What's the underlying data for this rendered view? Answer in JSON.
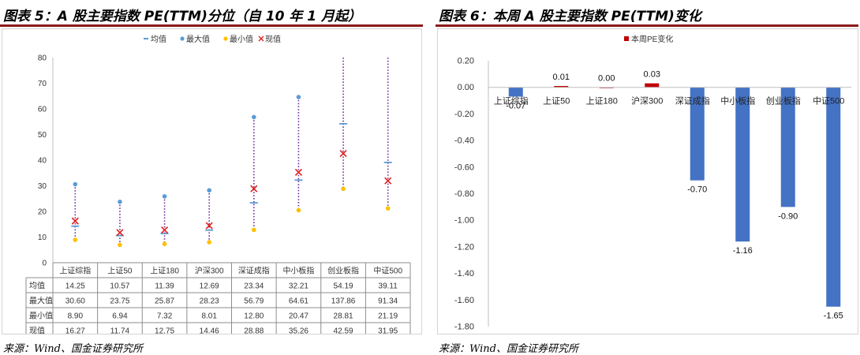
{
  "left": {
    "title": "图表 5：A 股主要指数 PE(TTM)分位（自 10 年 1 月起）",
    "source": "来源：Wind、国金证券研究所"
  },
  "right": {
    "title": "图表 6：本周 A 股主要指数 PE(TTM)变化",
    "source": "来源：Wind、国金证券研究所"
  },
  "colors": {
    "title_rule": "#8b1a1a",
    "mean": "#5b9bd5",
    "max": "#5b9bd5",
    "min": "#ffc000",
    "current": "#e02020",
    "range_line": "#7030a0",
    "bar_neg": "#4472c4",
    "bar_pos": "#c00000"
  },
  "chart_data": [
    {
      "type": "table",
      "legend": [
        "均值",
        "最大值",
        "最小值",
        "现值"
      ],
      "categories": [
        "上证综指",
        "上证50",
        "上证180",
        "沪深300",
        "深证成指",
        "中小板指",
        "创业板指",
        "中证500"
      ],
      "ylim": [
        0,
        80
      ],
      "yticks": [
        0,
        10,
        20,
        30,
        40,
        50,
        60,
        70,
        80
      ],
      "series": [
        {
          "name": "均值",
          "values": [
            14.25,
            10.57,
            11.39,
            12.69,
            23.34,
            32.21,
            54.19,
            39.11
          ]
        },
        {
          "name": "最大值",
          "values": [
            30.6,
            23.75,
            25.87,
            28.23,
            56.79,
            64.61,
            137.86,
            91.34
          ]
        },
        {
          "name": "最小值",
          "values": [
            8.9,
            6.94,
            7.32,
            8.01,
            12.8,
            20.47,
            28.81,
            21.19
          ]
        },
        {
          "name": "现值",
          "values": [
            16.27,
            11.74,
            12.75,
            14.46,
            28.88,
            35.26,
            42.59,
            31.95
          ]
        }
      ],
      "table_rows": [
        {
          "label": "均值",
          "values": [
            "14.25",
            "10.57",
            "11.39",
            "12.69",
            "23.34",
            "32.21",
            "54.19",
            "39.11"
          ]
        },
        {
          "label": "最大值",
          "values": [
            "30.60",
            "23.75",
            "25.87",
            "28.23",
            "56.79",
            "64.61",
            "137.86",
            "91.34"
          ]
        },
        {
          "label": "最小值",
          "values": [
            "8.90",
            "6.94",
            "7.32",
            "8.01",
            "12.80",
            "20.47",
            "28.81",
            "21.19"
          ]
        },
        {
          "label": "现值",
          "values": [
            "16.27",
            "11.74",
            "12.75",
            "14.46",
            "28.88",
            "35.26",
            "42.59",
            "31.95"
          ]
        }
      ]
    },
    {
      "type": "bar",
      "legend": [
        "本周PE变化"
      ],
      "categories": [
        "上证综指",
        "上证50",
        "上证180",
        "沪深300",
        "深证成指",
        "中小板指",
        "创业板指",
        "中证500"
      ],
      "values": [
        -0.07,
        0.01,
        0.0,
        0.03,
        -0.7,
        -1.16,
        -0.9,
        -1.65
      ],
      "labels": [
        "-0.07",
        "0.01",
        "0.00",
        "0.03",
        "-0.70",
        "-1.16",
        "-0.90",
        "-1.65"
      ],
      "ylim": [
        -1.8,
        0.2
      ],
      "yticks": [
        "0.20",
        "0.00",
        "-0.20",
        "-0.40",
        "-0.60",
        "-0.80",
        "-1.00",
        "-1.20",
        "-1.40",
        "-1.60",
        "-1.80"
      ]
    }
  ]
}
